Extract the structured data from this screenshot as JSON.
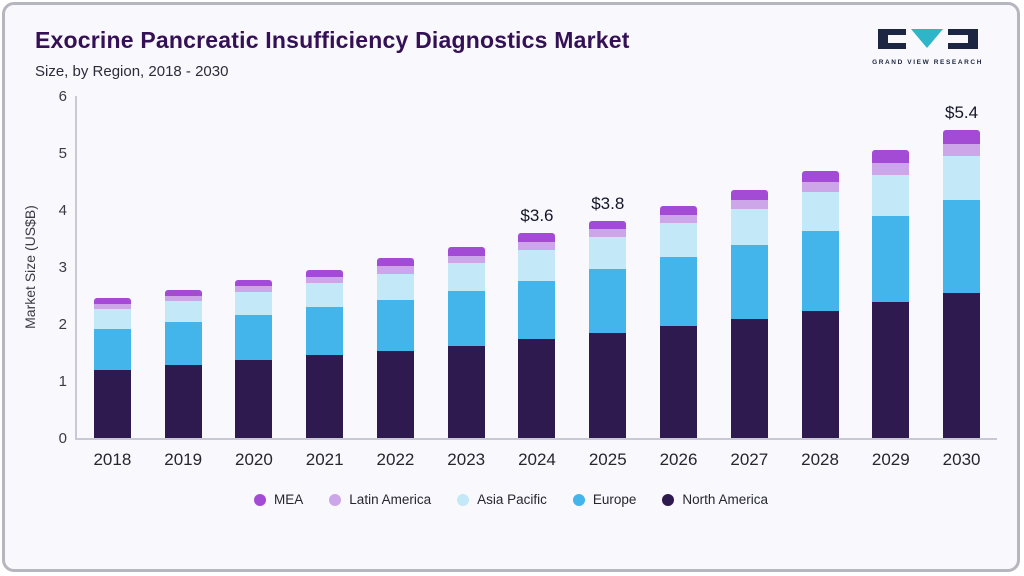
{
  "header": {
    "title": "Exocrine Pancreatic Insufficiency Diagnostics Market",
    "subtitle": "Size, by Region, 2018 - 2030",
    "logo_text": "GRAND VIEW RESEARCH"
  },
  "colors": {
    "background": "#f9f8fd",
    "border": "#b6b6bf",
    "title": "#341055",
    "logo_teal": "#2fb5c8",
    "logo_navy": "#1c2642"
  },
  "chart_data": {
    "type": "bar",
    "stacked": true,
    "title": "Exocrine Pancreatic Insufficiency Diagnostics Market",
    "subtitle": "Size, by Region, 2018 - 2030",
    "xlabel": "",
    "ylabel": "Market Size (US$B)",
    "ylim": [
      0,
      6
    ],
    "yticks": [
      0,
      1,
      2,
      3,
      4,
      5,
      6
    ],
    "grid": false,
    "legend_position": "bottom",
    "categories": [
      "2018",
      "2019",
      "2020",
      "2021",
      "2022",
      "2023",
      "2024",
      "2025",
      "2026",
      "2027",
      "2028",
      "2029",
      "2030"
    ],
    "series": [
      {
        "name": "North America",
        "color": "#2e1a4e",
        "values": [
          1.2,
          1.28,
          1.37,
          1.45,
          1.53,
          1.62,
          1.73,
          1.84,
          1.97,
          2.08,
          2.23,
          2.38,
          2.55
        ]
      },
      {
        "name": "Europe",
        "color": "#44b5ea",
        "values": [
          0.72,
          0.75,
          0.79,
          0.85,
          0.9,
          0.96,
          1.03,
          1.12,
          1.2,
          1.3,
          1.4,
          1.52,
          1.63
        ]
      },
      {
        "name": "Asia Pacific",
        "color": "#c3e8f8",
        "values": [
          0.34,
          0.37,
          0.4,
          0.42,
          0.45,
          0.49,
          0.54,
          0.56,
          0.6,
          0.64,
          0.68,
          0.72,
          0.76
        ]
      },
      {
        "name": "Latin America",
        "color": "#cda6ea",
        "values": [
          0.09,
          0.1,
          0.1,
          0.11,
          0.13,
          0.13,
          0.14,
          0.14,
          0.15,
          0.16,
          0.18,
          0.2,
          0.22
        ]
      },
      {
        "name": "MEA",
        "color": "#a44bd6",
        "values": [
          0.1,
          0.1,
          0.12,
          0.12,
          0.14,
          0.15,
          0.15,
          0.14,
          0.15,
          0.17,
          0.19,
          0.23,
          0.24
        ]
      }
    ],
    "totals": [
      2.45,
      2.6,
      2.78,
      2.95,
      3.15,
      3.35,
      3.6,
      3.8,
      4.07,
      4.35,
      4.68,
      5.05,
      5.4
    ],
    "bar_labels": {
      "2024": "$3.6",
      "2025": "$3.8",
      "2030": "$5.4"
    },
    "legend": [
      "MEA",
      "Latin America",
      "Asia Pacific",
      "Europe",
      "North America"
    ]
  }
}
